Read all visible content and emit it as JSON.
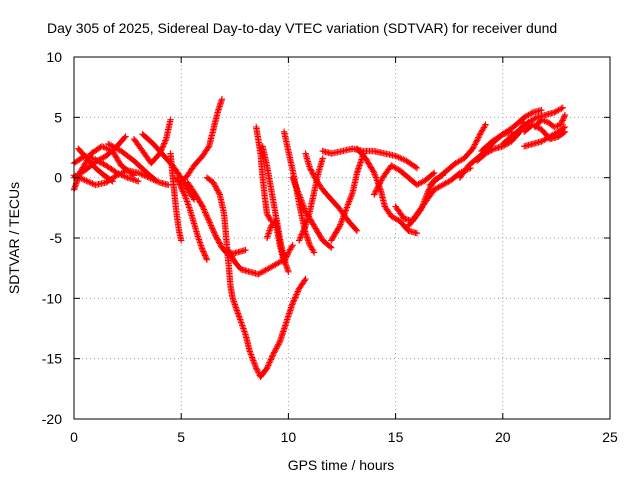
{
  "chart_data": {
    "type": "scatter",
    "title": "Day 305 of 2025, Sidereal Day-to-day VTEC variation (SDTVAR) for receiver dund",
    "xlabel": "GPS time / hours",
    "ylabel": "SDTVAR / TECUs",
    "xlim": [
      0,
      25
    ],
    "ylim": [
      -20,
      10
    ],
    "xticks": [
      0,
      5,
      10,
      15,
      20,
      25
    ],
    "yticks": [
      -20,
      -15,
      -10,
      -5,
      0,
      5,
      10
    ],
    "xtick_labels": [
      "0",
      "5",
      "10",
      "15",
      "20",
      "25"
    ],
    "ytick_labels": [
      "-20",
      "-15",
      "-10",
      "-5",
      "0",
      "5",
      "10"
    ],
    "grid": true,
    "marker": "plus",
    "color": "#ff0000",
    "series": [
      {
        "values": [
          [
            0.0,
            1.2
          ],
          [
            0.5,
            1.8
          ],
          [
            1.0,
            1.5
          ],
          [
            1.5,
            1.0
          ],
          [
            2.0,
            0.4
          ],
          [
            2.5,
            0.0
          ],
          [
            3.0,
            -0.3
          ]
        ]
      },
      {
        "values": [
          [
            0.0,
            -1.0
          ],
          [
            0.3,
            0.5
          ],
          [
            0.8,
            2.0
          ],
          [
            1.3,
            2.6
          ],
          [
            1.8,
            2.2
          ],
          [
            2.2,
            1.0
          ],
          [
            2.8,
            0.2
          ]
        ]
      },
      {
        "values": [
          [
            0.0,
            0.2
          ],
          [
            0.5,
            -0.2
          ],
          [
            1.0,
            -0.6
          ],
          [
            1.5,
            -0.4
          ],
          [
            2.0,
            0.2
          ],
          [
            2.5,
            0.6
          ],
          [
            3.0,
            0.4
          ],
          [
            3.5,
            0.0
          ],
          [
            4.0,
            -0.4
          ],
          [
            4.4,
            -0.6
          ]
        ]
      },
      {
        "values": [
          [
            0.2,
            2.4
          ],
          [
            0.6,
            1.6
          ],
          [
            1.0,
            0.8
          ],
          [
            1.4,
            0.2
          ],
          [
            1.8,
            -0.3
          ]
        ]
      },
      {
        "values": [
          [
            0.0,
            0.0
          ],
          [
            0.5,
            0.6
          ],
          [
            1.0,
            1.3
          ],
          [
            1.5,
            1.8
          ],
          [
            2.0,
            2.6
          ],
          [
            2.4,
            3.4
          ]
        ]
      },
      {
        "values": [
          [
            1.6,
            2.8
          ],
          [
            2.2,
            2.2
          ],
          [
            2.8,
            1.4
          ],
          [
            3.4,
            0.4
          ],
          [
            3.8,
            -0.2
          ]
        ]
      },
      {
        "values": [
          [
            2.8,
            3.2
          ],
          [
            3.2,
            2.2
          ],
          [
            3.6,
            1.2
          ],
          [
            4.0,
            2.0
          ],
          [
            4.3,
            3.2
          ],
          [
            4.5,
            4.8
          ]
        ]
      },
      {
        "values": [
          [
            3.2,
            3.6
          ],
          [
            3.7,
            2.8
          ],
          [
            4.2,
            1.8
          ],
          [
            4.6,
            1.0
          ],
          [
            5.0,
            0.0
          ],
          [
            5.3,
            -1.0
          ],
          [
            5.6,
            -1.8
          ]
        ]
      },
      {
        "values": [
          [
            4.5,
            2.0
          ],
          [
            4.6,
            0.2
          ],
          [
            4.7,
            -1.6
          ],
          [
            4.8,
            -3.2
          ],
          [
            4.9,
            -4.4
          ],
          [
            5.0,
            -5.2
          ]
        ]
      },
      {
        "values": [
          [
            4.8,
            0.0
          ],
          [
            5.0,
            -0.8
          ],
          [
            5.2,
            -1.6
          ],
          [
            5.4,
            -2.6
          ],
          [
            5.6,
            -3.8
          ],
          [
            5.8,
            -5.0
          ],
          [
            6.0,
            -6.0
          ],
          [
            6.2,
            -6.8
          ]
        ]
      },
      {
        "values": [
          [
            5.3,
            -0.4
          ],
          [
            5.6,
            -1.2
          ],
          [
            6.0,
            -2.4
          ],
          [
            6.3,
            -3.6
          ],
          [
            6.6,
            -4.8
          ],
          [
            6.9,
            -5.8
          ],
          [
            7.2,
            -6.4
          ],
          [
            7.6,
            -6.2
          ],
          [
            8.0,
            -6.0
          ]
        ]
      },
      {
        "values": [
          [
            5.0,
            -0.4
          ],
          [
            5.3,
            0.2
          ],
          [
            5.6,
            1.0
          ],
          [
            6.0,
            1.8
          ],
          [
            6.3,
            2.6
          ],
          [
            6.5,
            4.0
          ],
          [
            6.7,
            5.4
          ],
          [
            6.9,
            6.5
          ]
        ]
      },
      {
        "values": [
          [
            6.2,
            0.0
          ],
          [
            6.5,
            -0.4
          ],
          [
            6.8,
            -1.4
          ],
          [
            7.0,
            -3.0
          ],
          [
            7.1,
            -5.0
          ],
          [
            7.2,
            -7.0
          ],
          [
            7.3,
            -9.0
          ],
          [
            7.4,
            -10.0
          ],
          [
            7.6,
            -11.0
          ],
          [
            7.8,
            -12.0
          ],
          [
            8.0,
            -13.0
          ],
          [
            8.2,
            -14.4
          ],
          [
            8.5,
            -15.8
          ],
          [
            8.7,
            -16.5
          ],
          [
            9.0,
            -15.8
          ],
          [
            9.3,
            -14.6
          ],
          [
            9.6,
            -13.6
          ],
          [
            9.9,
            -12.0
          ],
          [
            10.2,
            -10.4
          ],
          [
            10.5,
            -9.2
          ],
          [
            10.8,
            -8.4
          ]
        ]
      },
      {
        "values": [
          [
            7.2,
            -6.0
          ],
          [
            7.5,
            -7.0
          ],
          [
            7.8,
            -7.6
          ],
          [
            8.2,
            -7.8
          ],
          [
            8.6,
            -8.0
          ],
          [
            9.0,
            -7.6
          ],
          [
            9.4,
            -7.2
          ],
          [
            9.8,
            -6.8
          ]
        ]
      },
      {
        "values": [
          [
            8.5,
            4.2
          ],
          [
            8.7,
            2.0
          ],
          [
            8.8,
            0.0
          ],
          [
            8.9,
            -1.6
          ],
          [
            9.0,
            -3.0
          ],
          [
            9.2,
            -3.6
          ]
        ]
      },
      {
        "values": [
          [
            8.8,
            2.6
          ],
          [
            9.0,
            1.0
          ],
          [
            9.2,
            -1.0
          ],
          [
            9.4,
            -3.0
          ],
          [
            9.6,
            -5.0
          ],
          [
            9.8,
            -6.8
          ],
          [
            10.0,
            -7.8
          ]
        ]
      },
      {
        "values": [
          [
            9.0,
            -5.0
          ],
          [
            9.2,
            -4.0
          ],
          [
            9.4,
            -3.6
          ],
          [
            9.6,
            -5.6
          ],
          [
            9.8,
            -7.0
          ],
          [
            10.0,
            -6.2
          ],
          [
            10.2,
            -5.6
          ]
        ]
      },
      {
        "values": [
          [
            9.8,
            3.8
          ],
          [
            10.0,
            2.2
          ],
          [
            10.2,
            0.6
          ],
          [
            10.4,
            -1.2
          ],
          [
            10.6,
            -3.0
          ],
          [
            10.8,
            -4.6
          ],
          [
            11.0,
            -5.6
          ],
          [
            11.2,
            -6.2
          ]
        ]
      },
      {
        "values": [
          [
            10.2,
            0.0
          ],
          [
            10.5,
            -1.4
          ],
          [
            10.8,
            -2.8
          ],
          [
            11.2,
            -4.0
          ],
          [
            11.6,
            -5.2
          ],
          [
            12.0,
            -5.8
          ]
        ]
      },
      {
        "values": [
          [
            10.5,
            -5.2
          ],
          [
            10.8,
            -4.0
          ],
          [
            11.0,
            -2.8
          ],
          [
            11.2,
            -1.2
          ],
          [
            11.4,
            0.4
          ],
          [
            11.6,
            1.6
          ]
        ]
      },
      {
        "values": [
          [
            10.8,
            2.0
          ],
          [
            11.0,
            0.8
          ],
          [
            11.3,
            -0.2
          ],
          [
            11.6,
            -1.0
          ],
          [
            12.0,
            -1.8
          ],
          [
            12.4,
            -2.6
          ],
          [
            12.8,
            -3.6
          ],
          [
            13.2,
            -4.4
          ]
        ]
      },
      {
        "values": [
          [
            12.0,
            -5.2
          ],
          [
            12.4,
            -4.0
          ],
          [
            12.7,
            -2.6
          ],
          [
            13.0,
            -1.2
          ],
          [
            13.2,
            0.4
          ],
          [
            13.5,
            2.0
          ]
        ]
      },
      {
        "values": [
          [
            11.6,
            2.2
          ],
          [
            12.0,
            2.0
          ],
          [
            12.5,
            2.2
          ],
          [
            13.0,
            2.4
          ],
          [
            13.5,
            2.2
          ],
          [
            14.0,
            2.2
          ],
          [
            14.5,
            2.0
          ],
          [
            15.0,
            1.8
          ],
          [
            15.5,
            1.4
          ],
          [
            16.0,
            0.8
          ]
        ]
      },
      {
        "values": [
          [
            13.2,
            2.4
          ],
          [
            13.6,
            1.6
          ],
          [
            14.0,
            0.4
          ],
          [
            14.3,
            -1.0
          ],
          [
            14.5,
            -2.4
          ],
          [
            14.8,
            -3.2
          ],
          [
            15.2,
            -3.6
          ],
          [
            15.6,
            -4.4
          ],
          [
            16.0,
            -4.6
          ]
        ]
      },
      {
        "values": [
          [
            14.0,
            -1.4
          ],
          [
            14.4,
            0.0
          ],
          [
            14.8,
            1.0
          ],
          [
            15.2,
            0.6
          ],
          [
            15.6,
            0.0
          ],
          [
            16.0,
            -0.6
          ],
          [
            16.4,
            -0.2
          ],
          [
            16.8,
            0.4
          ]
        ]
      },
      {
        "values": [
          [
            15.0,
            -2.4
          ],
          [
            15.4,
            -3.4
          ],
          [
            15.8,
            -3.6
          ],
          [
            16.2,
            -2.6
          ],
          [
            16.5,
            -1.2
          ],
          [
            16.8,
            -0.2
          ],
          [
            17.2,
            0.2
          ]
        ]
      },
      {
        "values": [
          [
            15.6,
            -4.0
          ],
          [
            16.0,
            -3.0
          ],
          [
            16.4,
            -2.0
          ],
          [
            16.8,
            -1.0
          ],
          [
            17.2,
            -0.6
          ],
          [
            17.6,
            -0.2
          ],
          [
            18.0,
            0.4
          ],
          [
            18.5,
            0.8
          ]
        ]
      },
      {
        "values": [
          [
            16.6,
            -0.6
          ],
          [
            17.0,
            0.0
          ],
          [
            17.4,
            0.6
          ],
          [
            17.8,
            1.2
          ],
          [
            18.2,
            1.6
          ],
          [
            18.6,
            2.4
          ],
          [
            19.0,
            3.8
          ],
          [
            19.2,
            4.4
          ]
        ]
      },
      {
        "values": [
          [
            18.0,
            0.0
          ],
          [
            18.4,
            1.0
          ],
          [
            18.8,
            1.6
          ],
          [
            19.2,
            2.2
          ],
          [
            19.6,
            3.0
          ],
          [
            20.0,
            3.6
          ],
          [
            20.4,
            3.8
          ]
        ]
      },
      {
        "values": [
          [
            18.8,
            1.4
          ],
          [
            19.2,
            2.0
          ],
          [
            19.6,
            2.4
          ],
          [
            20.0,
            2.6
          ],
          [
            20.4,
            3.0
          ],
          [
            20.8,
            3.8
          ],
          [
            21.0,
            4.6
          ]
        ]
      },
      {
        "values": [
          [
            19.0,
            2.2
          ],
          [
            19.5,
            3.0
          ],
          [
            20.0,
            3.6
          ],
          [
            20.5,
            4.2
          ],
          [
            21.0,
            5.0
          ],
          [
            21.4,
            5.4
          ],
          [
            21.8,
            5.6
          ]
        ]
      },
      {
        "values": [
          [
            20.0,
            2.8
          ],
          [
            20.4,
            3.4
          ],
          [
            20.8,
            4.0
          ],
          [
            21.2,
            4.6
          ],
          [
            21.6,
            5.0
          ],
          [
            22.0,
            5.2
          ],
          [
            22.4,
            5.4
          ],
          [
            22.8,
            5.8
          ]
        ]
      },
      {
        "values": [
          [
            21.0,
            2.6
          ],
          [
            21.4,
            2.8
          ],
          [
            21.8,
            3.0
          ],
          [
            22.2,
            3.4
          ],
          [
            22.6,
            3.8
          ],
          [
            22.9,
            4.2
          ]
        ]
      },
      {
        "values": [
          [
            21.5,
            4.2
          ],
          [
            21.8,
            4.8
          ],
          [
            22.1,
            4.6
          ],
          [
            22.4,
            4.2
          ],
          [
            22.7,
            4.4
          ],
          [
            22.9,
            5.2
          ]
        ]
      },
      {
        "values": [
          [
            21.0,
            3.8
          ],
          [
            21.4,
            4.4
          ],
          [
            21.8,
            4.0
          ],
          [
            22.2,
            3.2
          ],
          [
            22.6,
            3.4
          ],
          [
            22.9,
            3.8
          ]
        ]
      }
    ]
  }
}
